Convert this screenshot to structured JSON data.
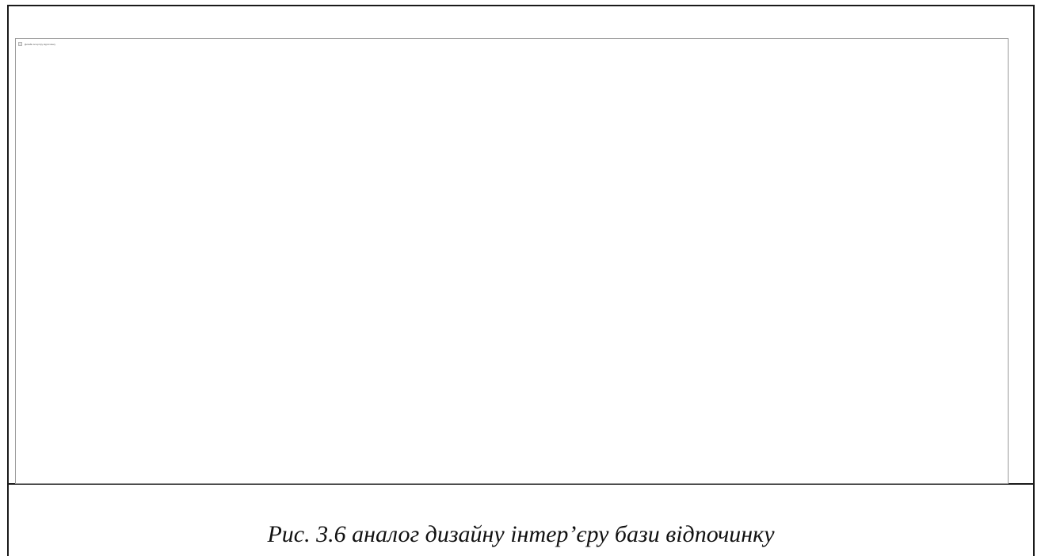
{
  "figure": {
    "image_alt_text": "Дизайн інтер'єру відпочинку",
    "caption": "Рис. 3.6 аналог дизайну інтер’єру бази відпочинку",
    "broken_image_icon": "broken-image-icon"
  }
}
